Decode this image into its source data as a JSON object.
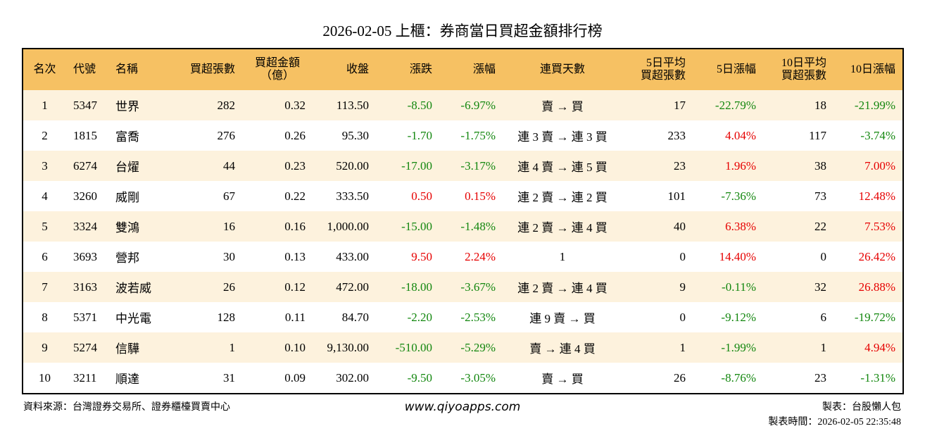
{
  "header": {
    "title": "2026-02-05 上櫃：券商當日買超金額排行榜"
  },
  "table": {
    "columns": [
      [
        "名次"
      ],
      [
        "代號"
      ],
      [
        "名稱"
      ],
      [
        "買超張數"
      ],
      [
        "買超金額",
        "（億）"
      ],
      [
        "收盤"
      ],
      [
        "漲跌"
      ],
      [
        "漲幅"
      ],
      [
        "連買天數"
      ],
      [
        "5日平均",
        "買超張數"
      ],
      [
        "5日漲幅"
      ],
      [
        "10日平均",
        "買超張數"
      ],
      [
        "10日漲幅"
      ]
    ],
    "rows": [
      [
        "1",
        "5347",
        "世界",
        "282",
        "0.32",
        "113.50",
        "-8.50",
        "-6.97%",
        "賣 → 買",
        "17",
        "-22.79%",
        "18",
        "-21.99%"
      ],
      [
        "2",
        "1815",
        "富喬",
        "276",
        "0.26",
        "95.30",
        "-1.70",
        "-1.75%",
        "連 3 賣 → 連 3 買",
        "233",
        "4.04%",
        "117",
        "-3.74%"
      ],
      [
        "3",
        "6274",
        "台燿",
        "44",
        "0.23",
        "520.00",
        "-17.00",
        "-3.17%",
        "連 4 賣 → 連 5 買",
        "23",
        "1.96%",
        "38",
        "7.00%"
      ],
      [
        "4",
        "3260",
        "威剛",
        "67",
        "0.22",
        "333.50",
        "0.50",
        "0.15%",
        "連 2 賣 → 連 2 買",
        "101",
        "-7.36%",
        "73",
        "12.48%"
      ],
      [
        "5",
        "3324",
        "雙鴻",
        "16",
        "0.16",
        "1,000.00",
        "-15.00",
        "-1.48%",
        "連 2 賣 → 連 4 買",
        "40",
        "6.38%",
        "22",
        "7.53%"
      ],
      [
        "6",
        "3693",
        "營邦",
        "30",
        "0.13",
        "433.00",
        "9.50",
        "2.24%",
        "1",
        "0",
        "14.40%",
        "0",
        "26.42%"
      ],
      [
        "7",
        "3163",
        "波若威",
        "26",
        "0.12",
        "472.00",
        "-18.00",
        "-3.67%",
        "連 2 賣 → 連 4 買",
        "9",
        "-0.11%",
        "32",
        "26.88%"
      ],
      [
        "8",
        "5371",
        "中光電",
        "128",
        "0.11",
        "84.70",
        "-2.20",
        "-2.53%",
        "連 9 賣 → 買",
        "0",
        "-9.12%",
        "6",
        "-19.72%"
      ],
      [
        "9",
        "5274",
        "信驊",
        "1",
        "0.10",
        "9,130.00",
        "-510.00",
        "-5.29%",
        "賣 → 連 4 買",
        "1",
        "-1.99%",
        "1",
        "4.94%"
      ],
      [
        "10",
        "3211",
        "順達",
        "31",
        "0.09",
        "302.00",
        "-9.50",
        "-3.05%",
        "賣 → 買",
        "26",
        "-8.76%",
        "23",
        "-1.31%"
      ]
    ]
  },
  "footer": {
    "source": "資料來源：台灣證券交易所、證券櫃檯買賣中心",
    "website": "www.qiyoapps.com",
    "author": "製表：台股懶人包",
    "time": "製表時間：2026-02-05 22:35:48"
  }
}
